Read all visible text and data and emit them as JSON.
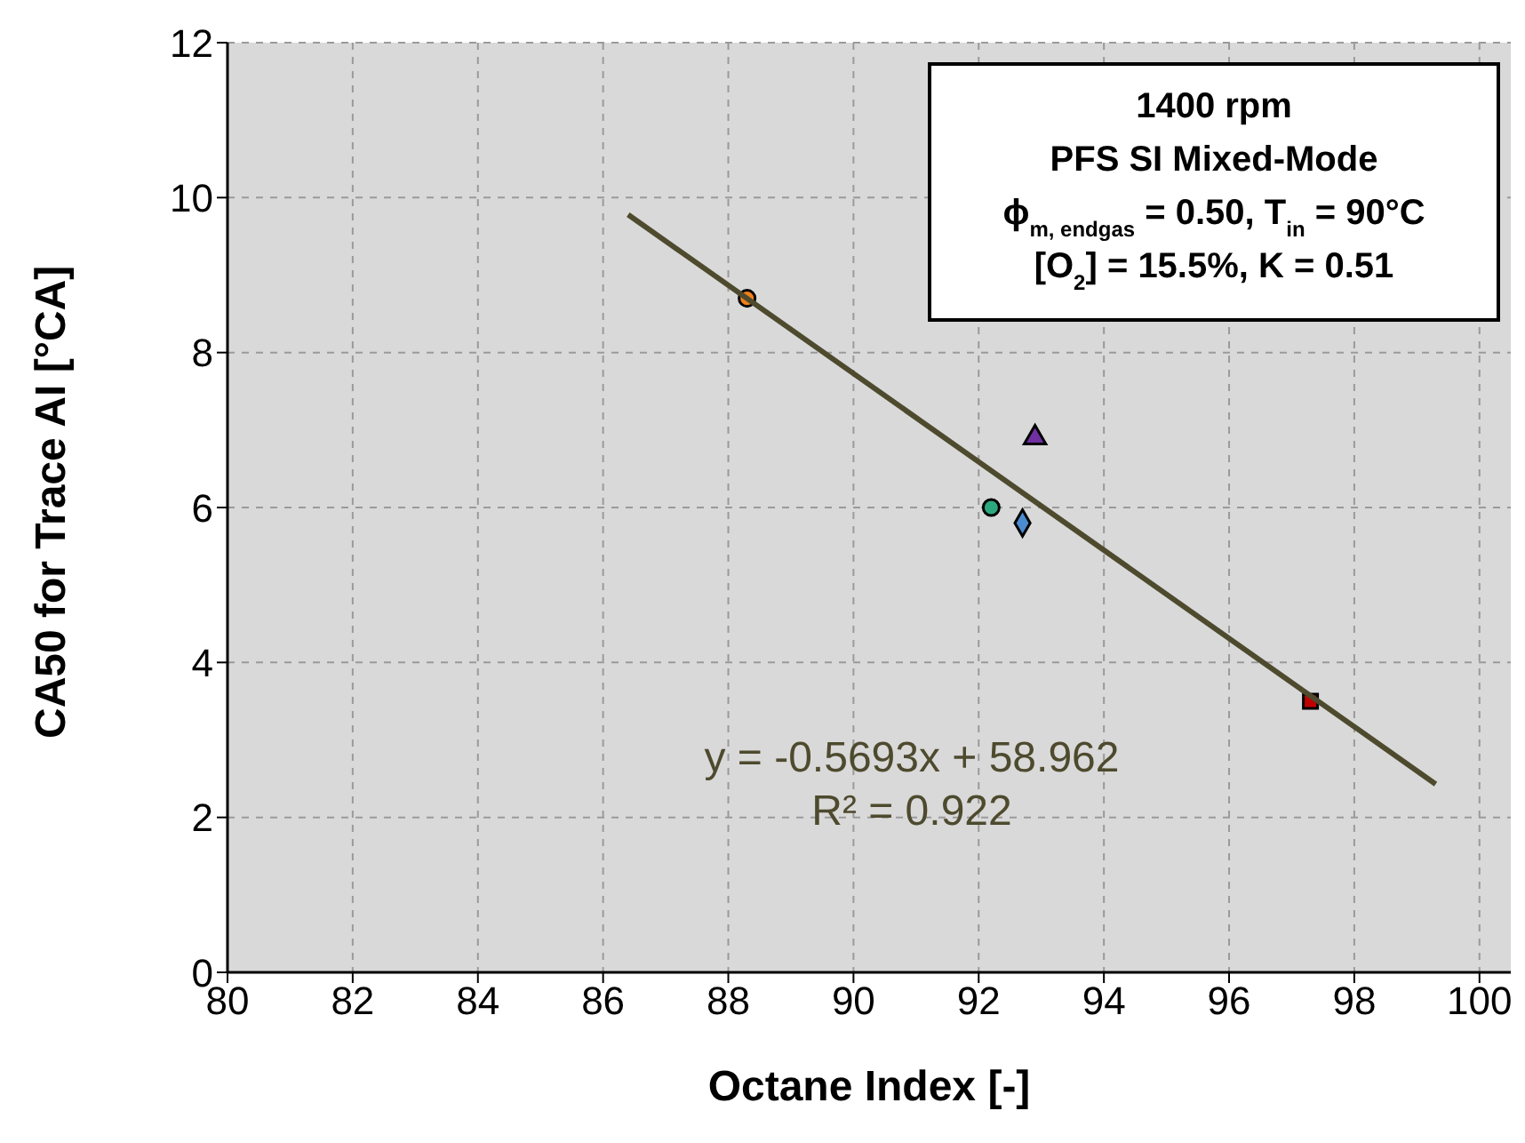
{
  "chart_data": {
    "type": "scatter",
    "xlabel": "Octane Index [-]",
    "ylabel": "CA50 for Trace AI [°CA]",
    "xlim": [
      80,
      100.5
    ],
    "xticks": [
      80,
      82,
      84,
      86,
      88,
      90,
      92,
      94,
      96,
      98,
      100
    ],
    "ylim": [
      0,
      12
    ],
    "yticks": [
      0,
      2,
      4,
      6,
      8,
      10,
      12
    ],
    "grid": true,
    "series": [
      {
        "color": "#f07f1a",
        "marker": "circle",
        "x": [
          88.3
        ],
        "values": [
          8.7
        ]
      },
      {
        "color": "#7030a0",
        "marker": "triangle",
        "x": [
          92.9
        ],
        "values": [
          6.9
        ]
      },
      {
        "color": "#2ca87f",
        "marker": "circle",
        "x": [
          92.2
        ],
        "values": [
          6.0
        ]
      },
      {
        "color": "#4a8ccf",
        "marker": "diamond",
        "x": [
          92.7
        ],
        "values": [
          5.8
        ]
      },
      {
        "color": "#c00000",
        "marker": "square",
        "x": [
          97.3
        ],
        "values": [
          3.5
        ]
      },
      {
        "type": "line",
        "color": "#4d4a2e",
        "marker": "none",
        "x": [
          86.4,
          99.3
        ],
        "values": [
          9.78,
          2.43
        ]
      }
    ],
    "annotations": [
      "1400 rpm",
      "PFS SI Mixed-Mode",
      "ϕ$_{m, endgas}$ = 0.50, T$_{in}$ = 90°C",
      "[O$_{2}$] = 15.5%, K = 0.51",
      "y = -0.5693x + 58.962",
      "R² = 0.922"
    ]
  }
}
